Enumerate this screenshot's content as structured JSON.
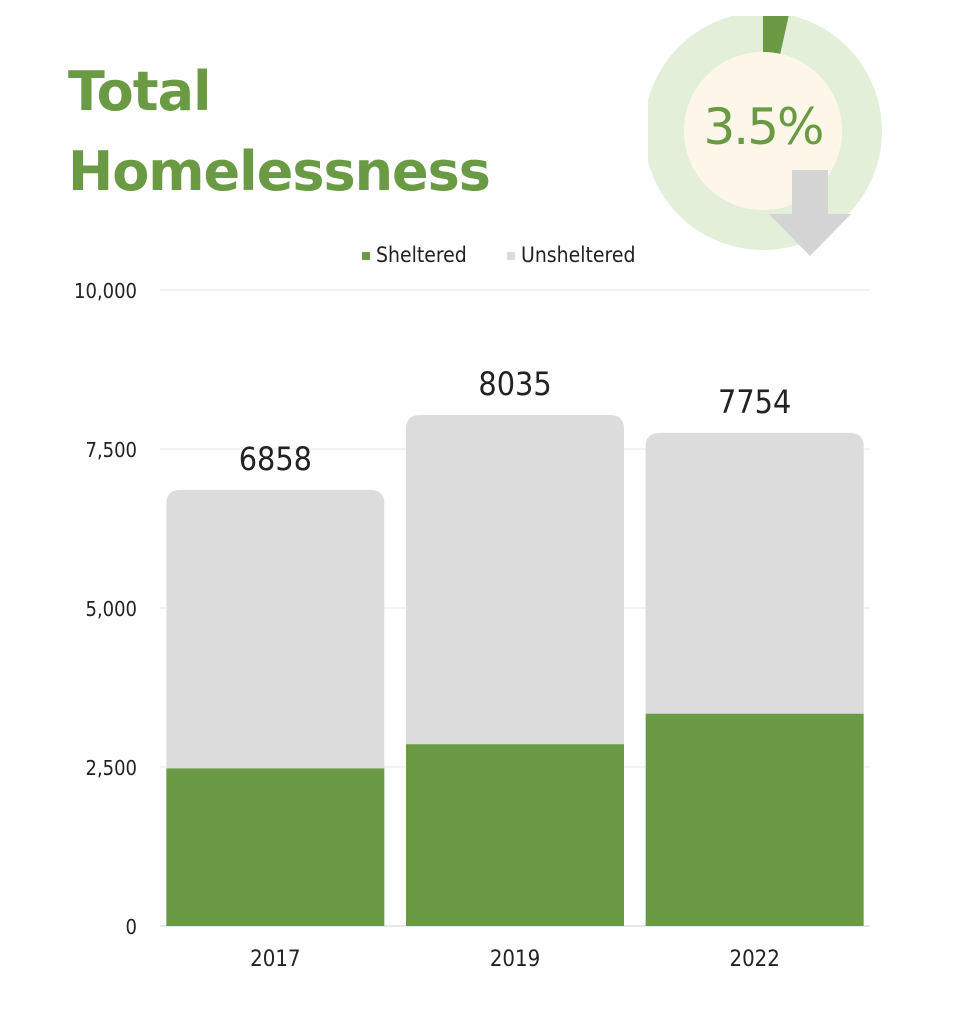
{
  "title_lines": [
    "Total",
    "Homelessness"
  ],
  "badge": {
    "value_label": "3.5%",
    "direction": "down",
    "arrow_icon": "down-arrow-icon"
  },
  "colors": {
    "accent": "#6a9a44",
    "sheltered": "#6a9a44",
    "unsheltered": "#dcdcdc",
    "ring": "#e3efd9",
    "badge_center": "#fdf7ea",
    "arrow": "#d4d4d4",
    "grid": "#e6e6e6",
    "text": "#222222"
  },
  "chart_data": {
    "type": "bar",
    "stacked": true,
    "categories": [
      "2017",
      "2019",
      "2022"
    ],
    "series": [
      {
        "name": "Sheltered",
        "values": [
          2480,
          2860,
          3340
        ]
      },
      {
        "name": "Unsheltered",
        "values": [
          4378,
          5175,
          4414
        ]
      }
    ],
    "totals": [
      6858,
      8035,
      7754
    ],
    "total_labels": [
      "6858",
      "8035",
      "7754"
    ],
    "y_ticks": [
      0,
      2500,
      5000,
      7500,
      10000
    ],
    "y_tick_labels": [
      "0",
      "2,500",
      "5,000",
      "7,500",
      "10,000"
    ],
    "ylim": [
      0,
      10000
    ],
    "grid": true,
    "legend_position": "top-center",
    "title": "",
    "xlabel": "",
    "ylabel": ""
  }
}
